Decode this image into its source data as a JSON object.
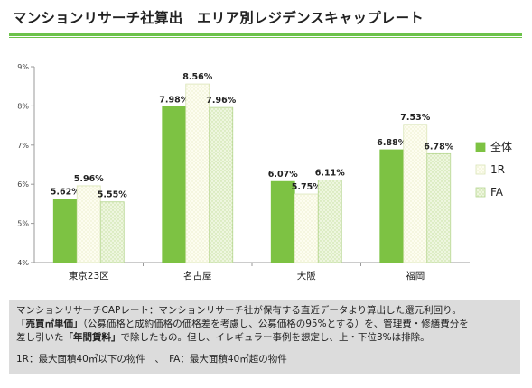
{
  "title": "マンションリサーチ社算出　エリア別レジデンスキャップレート",
  "chart_data": {
    "type": "bar",
    "categories": [
      "東京23区",
      "名古屋",
      "大阪",
      "福岡"
    ],
    "series": [
      {
        "name": "全体",
        "values": [
          5.62,
          7.98,
          6.07,
          6.88
        ],
        "labels": [
          "5.62%",
          "7.98%",
          "6.07%",
          "6.88%"
        ]
      },
      {
        "name": "1R",
        "values": [
          5.96,
          8.56,
          5.75,
          7.53
        ],
        "labels": [
          "5.96%",
          "8.56%",
          "5.75%",
          "7.53%"
        ]
      },
      {
        "name": "FA",
        "values": [
          5.55,
          7.96,
          6.11,
          6.78
        ],
        "labels": [
          "5.55%",
          "7.96%",
          "6.11%",
          "6.78%"
        ]
      }
    ],
    "yticks": [
      "4%",
      "5%",
      "6%",
      "7%",
      "8%",
      "9%"
    ],
    "ylim": [
      4,
      9
    ],
    "grid": false,
    "legend_position": "right",
    "colors": {
      "全体": "#7dc243",
      "1R": "#fbfbe8",
      "FA": "#e6f2d0",
      "edge": "#a7d083"
    }
  },
  "note": {
    "line1": "マンションリサーチCAPレート：マンションリサーチ社が保有する直近データより算出した還元利回り。",
    "line2_bold": "「売買㎡単価」",
    "line2_rest": "（公募価格と成約価格の価格差を考慮し、公募価格の95%とする）を、管理費・修繕費分を",
    "line3_pre": "差し引いた",
    "line3_bold": "「年間賃料」",
    "line3_rest": "で除したもの。但し、イレギュラー事例を想定し、上・下位3%は排除。",
    "line4": "1R：最大面積40㎡以下の物件　、　FA：最大面積40㎡超の物件"
  }
}
